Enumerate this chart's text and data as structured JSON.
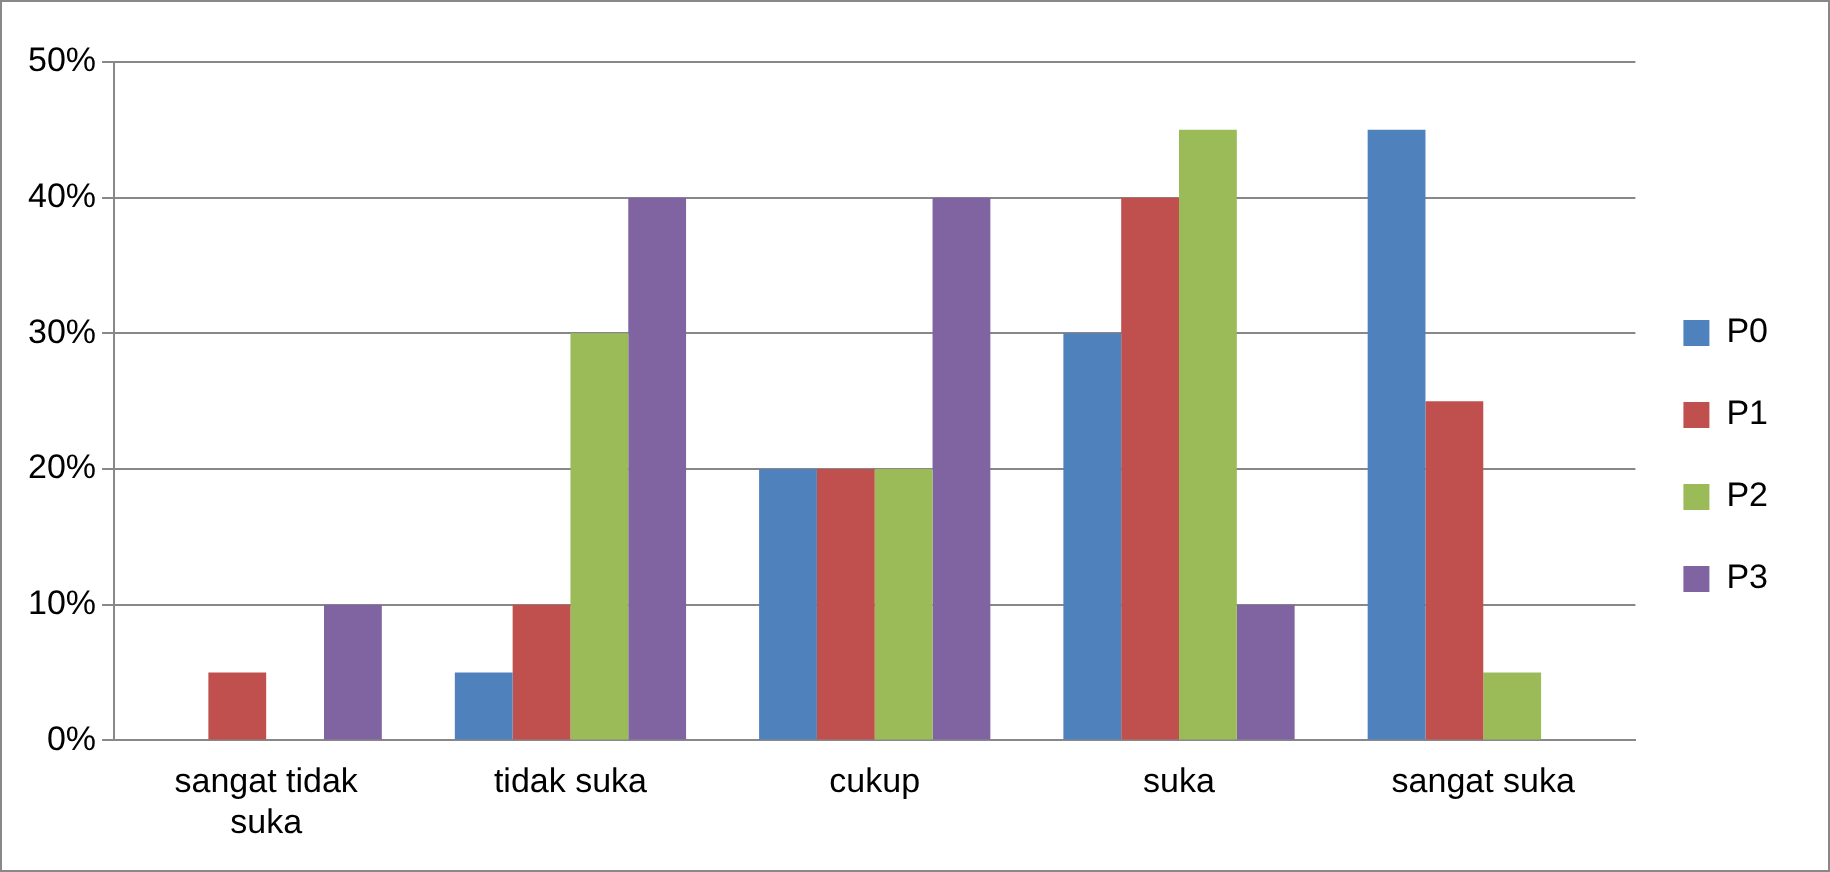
{
  "chart_data": {
    "type": "bar",
    "categories": [
      "sangat tidak suka",
      "tidak suka",
      "cukup",
      "suka",
      "sangat suka"
    ],
    "series": [
      {
        "name": "P0",
        "color": "#4f81bd",
        "values": [
          0,
          5,
          20,
          30,
          45
        ]
      },
      {
        "name": "P1",
        "color": "#c0504d",
        "values": [
          5,
          10,
          20,
          40,
          25
        ]
      },
      {
        "name": "P2",
        "color": "#9bbb59",
        "values": [
          0,
          30,
          20,
          45,
          5
        ]
      },
      {
        "name": "P3",
        "color": "#8064a2",
        "values": [
          10,
          40,
          40,
          10,
          0
        ]
      }
    ],
    "ylim": [
      0,
      50
    ],
    "yticks": [
      {
        "value": 0,
        "label": "0%"
      },
      {
        "value": 10,
        "label": "10%"
      },
      {
        "value": 20,
        "label": "20%"
      },
      {
        "value": 30,
        "label": "30%"
      },
      {
        "value": 40,
        "label": "40%"
      },
      {
        "value": 50,
        "label": "50%"
      }
    ],
    "grid": "y",
    "legend": "right"
  }
}
